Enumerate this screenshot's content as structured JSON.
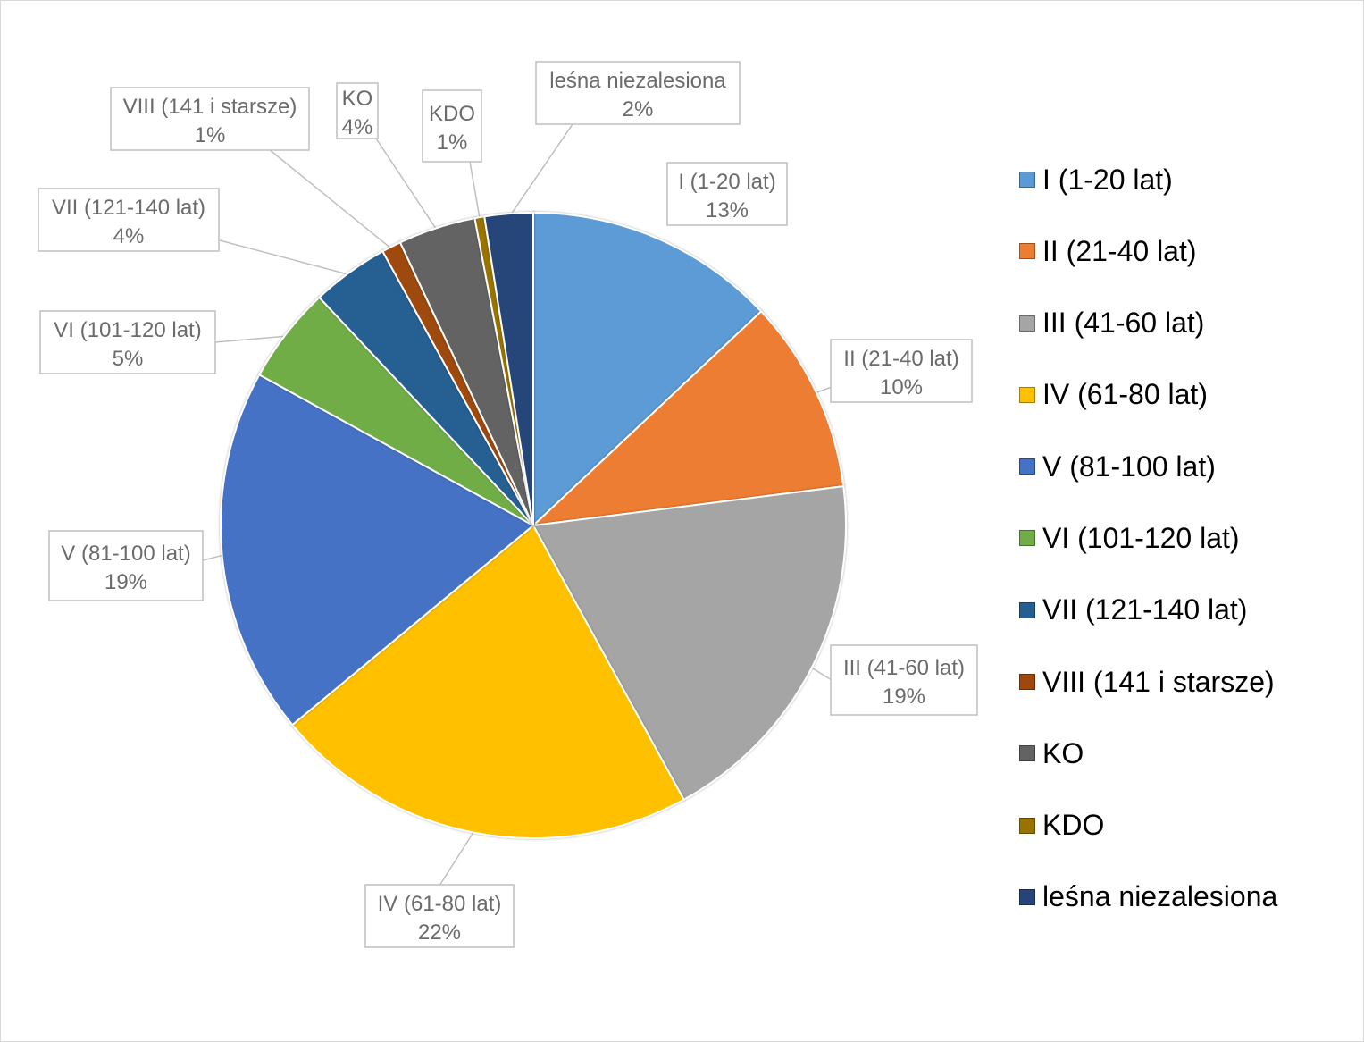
{
  "chart_data": {
    "type": "pie",
    "title": "",
    "slices": [
      {
        "label": "I (1-20 lat)",
        "value": 13,
        "data_label": "13%",
        "color": "#5B9BD5"
      },
      {
        "label": "II (21-40 lat)",
        "value": 10,
        "data_label": "10%",
        "color": "#ED7D31"
      },
      {
        "label": "III (41-60 lat)",
        "value": 19,
        "data_label": "19%",
        "color": "#A5A5A5"
      },
      {
        "label": "IV (61-80 lat)",
        "value": 22,
        "data_label": "22%",
        "color": "#FFC000"
      },
      {
        "label": "V (81-100 lat)",
        "value": 19,
        "data_label": "19%",
        "color": "#4472C4"
      },
      {
        "label": "VI (101-120 lat)",
        "value": 5,
        "data_label": "5%",
        "color": "#70AD47"
      },
      {
        "label": "VII (121-140 lat)",
        "value": 4,
        "data_label": "4%",
        "color": "#255E91"
      },
      {
        "label": "VIII (141 i starsze)",
        "value": 1,
        "data_label": "1%",
        "color": "#9E480E"
      },
      {
        "label": "KO",
        "value": 4,
        "data_label": "4%",
        "color": "#636363"
      },
      {
        "label": "KDO",
        "value": 0.5,
        "data_label": "1%",
        "color": "#997300"
      },
      {
        "label": "leśna niezalesiona",
        "value": 2.5,
        "data_label": "2%",
        "color": "#264478"
      }
    ],
    "legend_position": "right"
  },
  "legend": {
    "items": [
      "I (1-20 lat)",
      "II (21-40 lat)",
      "III (41-60 lat)",
      "IV (61-80 lat)",
      "V (81-100 lat)",
      "VI (101-120 lat)",
      "VII (121-140 lat)",
      "VIII (141 i starsze)",
      "KO",
      "KDO",
      "leśna niezalesiona"
    ]
  }
}
